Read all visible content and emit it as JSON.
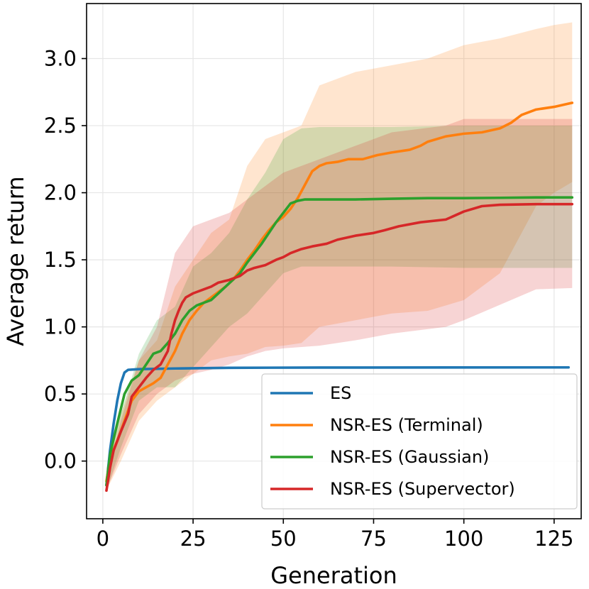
{
  "chart_data": {
    "type": "line",
    "title": "",
    "xlabel": "Generation",
    "ylabel": "Average return",
    "xlim": [
      -4.5,
      132.5
    ],
    "ylim": [
      -0.43,
      3.41
    ],
    "xticks": [
      0,
      25,
      50,
      75,
      100,
      125
    ],
    "xtick_labels": [
      "0",
      "25",
      "50",
      "75",
      "100",
      "125"
    ],
    "yticks": [
      0.0,
      0.5,
      1.0,
      1.5,
      2.0,
      2.5,
      3.0
    ],
    "ytick_labels": [
      "0.0",
      "0.5",
      "1.0",
      "1.5",
      "2.0",
      "2.5",
      "3.0"
    ],
    "grid": true,
    "legend_position": "lower-right",
    "series": [
      {
        "name": "ES",
        "label": "ES",
        "color": "#1f77b4",
        "points": [
          [
            1,
            -0.18
          ],
          [
            2,
            0.08
          ],
          [
            3,
            0.28
          ],
          [
            4,
            0.45
          ],
          [
            5,
            0.58
          ],
          [
            6,
            0.66
          ],
          [
            7,
            0.68
          ],
          [
            10,
            0.685
          ],
          [
            20,
            0.69
          ],
          [
            35,
            0.695
          ],
          [
            60,
            0.697
          ],
          [
            129,
            0.698
          ]
        ],
        "band": []
      },
      {
        "name": "NSR-ES (Terminal)",
        "label": "NSR-ES (Terminal)",
        "color": "#ff7f0e",
        "points": [
          [
            1,
            -0.15
          ],
          [
            2,
            0.02
          ],
          [
            4,
            0.15
          ],
          [
            6,
            0.3
          ],
          [
            8,
            0.45
          ],
          [
            10,
            0.52
          ],
          [
            12,
            0.55
          ],
          [
            14,
            0.58
          ],
          [
            16,
            0.62
          ],
          [
            18,
            0.72
          ],
          [
            20,
            0.82
          ],
          [
            22,
            0.95
          ],
          [
            24,
            1.05
          ],
          [
            26,
            1.12
          ],
          [
            28,
            1.18
          ],
          [
            30,
            1.22
          ],
          [
            32,
            1.26
          ],
          [
            34,
            1.3
          ],
          [
            36,
            1.35
          ],
          [
            38,
            1.42
          ],
          [
            40,
            1.5
          ],
          [
            42,
            1.57
          ],
          [
            44,
            1.65
          ],
          [
            46,
            1.72
          ],
          [
            48,
            1.78
          ],
          [
            50,
            1.82
          ],
          [
            52,
            1.88
          ],
          [
            54,
            1.96
          ],
          [
            56,
            2.06
          ],
          [
            58,
            2.16
          ],
          [
            60,
            2.2
          ],
          [
            62,
            2.22
          ],
          [
            65,
            2.23
          ],
          [
            68,
            2.25
          ],
          [
            72,
            2.25
          ],
          [
            76,
            2.28
          ],
          [
            80,
            2.3
          ],
          [
            85,
            2.32
          ],
          [
            88,
            2.35
          ],
          [
            90,
            2.38
          ],
          [
            95,
            2.42
          ],
          [
            100,
            2.44
          ],
          [
            105,
            2.45
          ],
          [
            110,
            2.48
          ],
          [
            113,
            2.52
          ],
          [
            116,
            2.58
          ],
          [
            120,
            2.62
          ],
          [
            125,
            2.64
          ],
          [
            130,
            2.67
          ]
        ],
        "band": [
          [
            1,
            -0.22,
            -0.05
          ],
          [
            5,
            0.0,
            0.35
          ],
          [
            10,
            0.3,
            0.75
          ],
          [
            15,
            0.45,
            0.9
          ],
          [
            20,
            0.55,
            1.3
          ],
          [
            25,
            0.65,
            1.5
          ],
          [
            30,
            0.75,
            1.7
          ],
          [
            35,
            0.78,
            1.8
          ],
          [
            40,
            0.8,
            2.2
          ],
          [
            45,
            0.85,
            2.4
          ],
          [
            50,
            0.86,
            2.45
          ],
          [
            55,
            0.88,
            2.5
          ],
          [
            60,
            1.0,
            2.8
          ],
          [
            70,
            1.05,
            2.9
          ],
          [
            80,
            1.1,
            2.95
          ],
          [
            90,
            1.12,
            3.0
          ],
          [
            100,
            1.2,
            3.1
          ],
          [
            110,
            1.4,
            3.15
          ],
          [
            120,
            1.9,
            3.22
          ],
          [
            125,
            2.0,
            3.25
          ],
          [
            130,
            2.08,
            3.27
          ]
        ]
      },
      {
        "name": "NSR-ES (Gaussian)",
        "label": "NSR-ES (Gaussian)",
        "color": "#2ca02c",
        "points": [
          [
            1,
            -0.18
          ],
          [
            2,
            0.05
          ],
          [
            4,
            0.28
          ],
          [
            6,
            0.5
          ],
          [
            8,
            0.6
          ],
          [
            10,
            0.64
          ],
          [
            12,
            0.72
          ],
          [
            14,
            0.8
          ],
          [
            16,
            0.82
          ],
          [
            18,
            0.88
          ],
          [
            20,
            0.95
          ],
          [
            22,
            1.05
          ],
          [
            24,
            1.12
          ],
          [
            26,
            1.16
          ],
          [
            28,
            1.18
          ],
          [
            30,
            1.2
          ],
          [
            32,
            1.25
          ],
          [
            34,
            1.3
          ],
          [
            36,
            1.35
          ],
          [
            38,
            1.4
          ],
          [
            40,
            1.48
          ],
          [
            42,
            1.55
          ],
          [
            44,
            1.62
          ],
          [
            46,
            1.7
          ],
          [
            48,
            1.78
          ],
          [
            50,
            1.85
          ],
          [
            52,
            1.92
          ],
          [
            54,
            1.94
          ],
          [
            56,
            1.95
          ],
          [
            60,
            1.95
          ],
          [
            70,
            1.95
          ],
          [
            80,
            1.955
          ],
          [
            90,
            1.96
          ],
          [
            100,
            1.96
          ],
          [
            110,
            1.962
          ],
          [
            120,
            1.965
          ],
          [
            130,
            1.965
          ]
        ],
        "band": [
          [
            1,
            -0.22,
            -0.1
          ],
          [
            5,
            0.1,
            0.35
          ],
          [
            10,
            0.45,
            0.8
          ],
          [
            15,
            0.55,
            1.05
          ],
          [
            20,
            0.55,
            1.15
          ],
          [
            25,
            0.7,
            1.45
          ],
          [
            30,
            0.85,
            1.55
          ],
          [
            35,
            1.0,
            1.7
          ],
          [
            40,
            1.1,
            1.95
          ],
          [
            45,
            1.25,
            2.15
          ],
          [
            50,
            1.4,
            2.4
          ],
          [
            55,
            1.45,
            2.48
          ],
          [
            60,
            1.45,
            2.49
          ],
          [
            70,
            1.45,
            2.49
          ],
          [
            80,
            1.45,
            2.49
          ],
          [
            100,
            1.44,
            2.5
          ],
          [
            130,
            1.44,
            2.5
          ]
        ]
      },
      {
        "name": "NSR-ES (Supervector)",
        "label": "NSR-ES (Supervector)",
        "color": "#d62728",
        "points": [
          [
            1,
            -0.22
          ],
          [
            2,
            -0.05
          ],
          [
            3,
            0.08
          ],
          [
            5,
            0.22
          ],
          [
            7,
            0.35
          ],
          [
            8,
            0.48
          ],
          [
            10,
            0.55
          ],
          [
            12,
            0.62
          ],
          [
            14,
            0.68
          ],
          [
            16,
            0.72
          ],
          [
            18,
            0.82
          ],
          [
            19,
            0.95
          ],
          [
            20,
            1.05
          ],
          [
            21,
            1.12
          ],
          [
            22,
            1.18
          ],
          [
            23,
            1.22
          ],
          [
            25,
            1.25
          ],
          [
            28,
            1.28
          ],
          [
            30,
            1.3
          ],
          [
            32,
            1.33
          ],
          [
            35,
            1.35
          ],
          [
            38,
            1.38
          ],
          [
            40,
            1.42
          ],
          [
            42,
            1.44
          ],
          [
            45,
            1.46
          ],
          [
            48,
            1.5
          ],
          [
            50,
            1.52
          ],
          [
            52,
            1.55
          ],
          [
            55,
            1.58
          ],
          [
            58,
            1.6
          ],
          [
            62,
            1.62
          ],
          [
            65,
            1.65
          ],
          [
            70,
            1.68
          ],
          [
            75,
            1.7
          ],
          [
            78,
            1.72
          ],
          [
            82,
            1.75
          ],
          [
            88,
            1.78
          ],
          [
            95,
            1.8
          ],
          [
            100,
            1.86
          ],
          [
            105,
            1.9
          ],
          [
            110,
            1.91
          ],
          [
            120,
            1.915
          ],
          [
            130,
            1.915
          ]
        ],
        "band": [
          [
            1,
            -0.22,
            -0.15
          ],
          [
            5,
            0.05,
            0.3
          ],
          [
            10,
            0.35,
            0.75
          ],
          [
            15,
            0.5,
            1.0
          ],
          [
            20,
            0.6,
            1.55
          ],
          [
            25,
            0.65,
            1.75
          ],
          [
            30,
            0.68,
            1.8
          ],
          [
            35,
            0.72,
            1.85
          ],
          [
            40,
            0.78,
            1.95
          ],
          [
            45,
            0.82,
            2.05
          ],
          [
            50,
            0.84,
            2.15
          ],
          [
            60,
            0.86,
            2.25
          ],
          [
            70,
            0.9,
            2.35
          ],
          [
            80,
            0.95,
            2.45
          ],
          [
            95,
            1.0,
            2.5
          ],
          [
            100,
            1.05,
            2.55
          ],
          [
            120,
            1.28,
            2.55
          ],
          [
            130,
            1.29,
            2.55
          ]
        ]
      }
    ]
  }
}
